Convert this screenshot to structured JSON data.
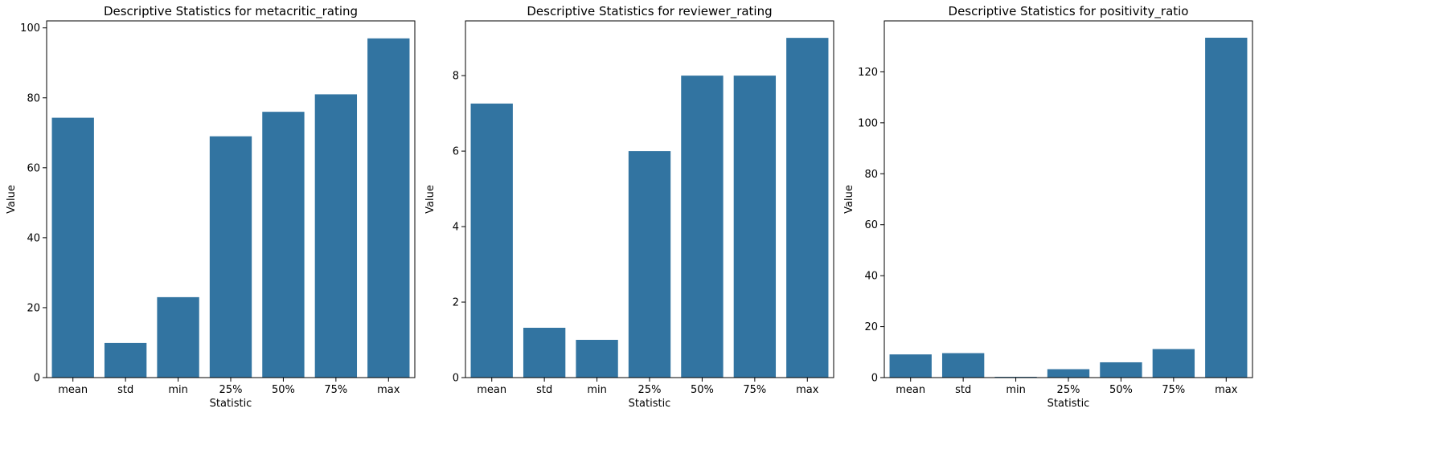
{
  "chart_data": [
    {
      "type": "bar",
      "title": "Descriptive Statistics for metacritic_rating",
      "xlabel": "Statistic",
      "ylabel": "Value",
      "categories": [
        "mean",
        "std",
        "min",
        "25%",
        "50%",
        "75%",
        "max"
      ],
      "values": [
        74.3,
        9.9,
        23,
        69,
        76,
        81,
        97
      ],
      "ylim": [
        0,
        102
      ],
      "yticks": [
        0,
        20,
        40,
        60,
        80,
        100
      ],
      "bar_color": "#3274a1",
      "grid": false
    },
    {
      "type": "bar",
      "title": "Descriptive Statistics for reviewer_rating",
      "xlabel": "Statistic",
      "ylabel": "Value",
      "categories": [
        "mean",
        "std",
        "min",
        "25%",
        "50%",
        "75%",
        "max"
      ],
      "values": [
        7.26,
        1.32,
        1,
        6,
        8,
        8,
        9
      ],
      "ylim": [
        0,
        9.45
      ],
      "yticks": [
        0,
        2,
        4,
        6,
        8
      ],
      "bar_color": "#3274a1",
      "grid": false
    },
    {
      "type": "bar",
      "title": "Descriptive Statistics for positivity_ratio",
      "xlabel": "Statistic",
      "ylabel": "Value",
      "categories": [
        "mean",
        "std",
        "min",
        "25%",
        "50%",
        "75%",
        "max"
      ],
      "values": [
        9.1,
        9.6,
        0.3,
        3.3,
        6.0,
        11.2,
        133.4
      ],
      "ylim": [
        0,
        140
      ],
      "yticks": [
        0,
        20,
        40,
        60,
        80,
        100,
        120
      ],
      "bar_color": "#3274a1",
      "grid": false
    }
  ]
}
